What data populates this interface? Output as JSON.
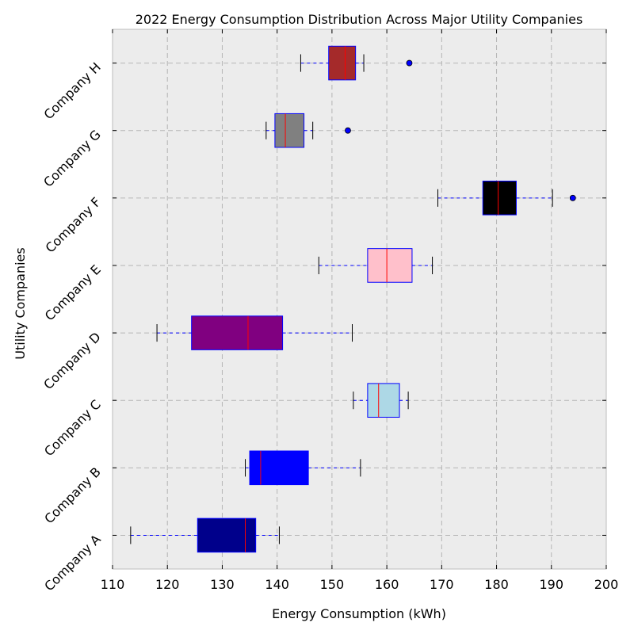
{
  "chart_data": {
    "type": "boxplot",
    "orientation": "horizontal",
    "title": "2022 Energy Consumption Distribution Across Major Utility Companies",
    "xlabel": "Energy Consumption (kWh)",
    "ylabel": "Utility Companies",
    "xlim": [
      110,
      200
    ],
    "xticks": [
      110,
      120,
      130,
      140,
      150,
      160,
      170,
      180,
      190,
      200
    ],
    "grid": true,
    "plot_background": "#ececec",
    "whisker_color": "#0000ff",
    "median_color": "#ff0000",
    "box_edge_color": "#0000ff",
    "categories": [
      "Company A",
      "Company B",
      "Company C",
      "Company D",
      "Company E",
      "Company F",
      "Company G",
      "Company H"
    ],
    "series": [
      {
        "category": "Company A",
        "whislo": 113.3,
        "q1": 125.5,
        "median": 134.2,
        "q3": 136.1,
        "whishi": 140.4,
        "fliers": [],
        "color": "#00008b"
      },
      {
        "category": "Company B",
        "whislo": 134.2,
        "q1": 135.0,
        "median": 137.0,
        "q3": 145.7,
        "whishi": 155.2,
        "fliers": [],
        "color": "#0000ff"
      },
      {
        "category": "Company C",
        "whislo": 153.9,
        "q1": 156.5,
        "median": 158.5,
        "q3": 162.3,
        "whishi": 163.9,
        "fliers": [],
        "color": "#add8e6"
      },
      {
        "category": "Company D",
        "whislo": 118.1,
        "q1": 124.4,
        "median": 134.7,
        "q3": 141.0,
        "whishi": 153.7,
        "fliers": [],
        "color": "#800080"
      },
      {
        "category": "Company E",
        "whislo": 147.6,
        "q1": 156.5,
        "median": 160.0,
        "q3": 164.6,
        "whishi": 168.3,
        "fliers": [],
        "color": "#ffc0cb"
      },
      {
        "category": "Company F",
        "whislo": 169.3,
        "q1": 177.5,
        "median": 180.3,
        "q3": 183.6,
        "whishi": 190.2,
        "fliers": [
          193.9
        ],
        "color": "#000000"
      },
      {
        "category": "Company G",
        "whislo": 138.0,
        "q1": 139.6,
        "median": 141.5,
        "q3": 144.9,
        "whishi": 146.5,
        "fliers": [
          152.9
        ],
        "color": "#808080"
      },
      {
        "category": "Company H",
        "whislo": 144.3,
        "q1": 149.4,
        "median": 152.4,
        "q3": 154.3,
        "whishi": 155.8,
        "fliers": [
          164.1
        ],
        "color": "#a52a2a"
      }
    ]
  }
}
